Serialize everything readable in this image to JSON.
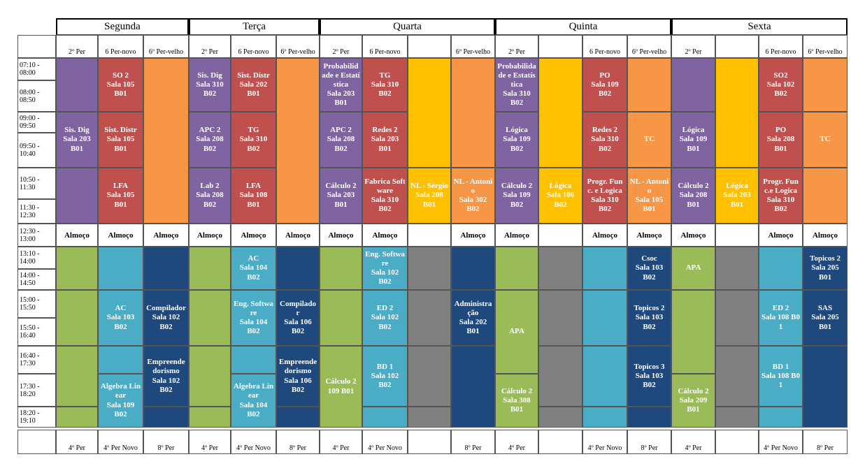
{
  "schedule": {
    "days": [
      "Segunda",
      "Terça",
      "Quarta",
      "Quinta",
      "Sexta"
    ],
    "sub_headers": [
      "2º Per",
      "6 Per-novo",
      "6º Per-velho",
      "2º Per",
      "6 Per-novo",
      "6º Per-velho",
      "2º Per",
      "6 Per-novo",
      null,
      "6º Per-velho",
      "2º Per",
      null,
      "6 Per-novo",
      "6º Per-velho",
      "2º Per",
      null,
      "6 Per-novo",
      "6º Per-velho"
    ],
    "footer": [
      "4º Per",
      "4º Per Novo",
      "8º Per",
      "4º Per",
      "4º Per Novo",
      "8º Per",
      "4º Per",
      "4º Per Novo",
      null,
      "8º Per",
      "4º Per",
      null,
      "4º Per Novo",
      "8º Per",
      "4º Per",
      null,
      "4º Per Novo",
      "8º Per"
    ],
    "times": [
      "07:10 - 08:00",
      "08:00 - 08:50",
      "09:00 - 09:50",
      "09:50 - 10:40",
      "10:50 - 11:30",
      "11:30 - 12:30",
      "12:30 - 13:00",
      "13:10 - 14:00",
      "14:00 - 14:50",
      "15:00 - 15:50",
      "15:50 - 16:40",
      "16:40 - 17:30",
      "17:30 - 18:20",
      "18:20 - 19:10"
    ],
    "lunch": [
      "Almoço",
      "Almoço",
      "Almoço",
      "Almoço",
      "Almoço",
      "Almoço",
      "Almoço",
      "Almoço",
      null,
      "Almoço",
      "Almoço",
      null,
      "Almoço",
      "Almoço",
      "Almoço",
      null,
      "Almoço",
      "Almoço"
    ],
    "blocks": [
      {
        "lines": [
          "Sis. Dig",
          "Sala 203",
          "B01"
        ]
      },
      {
        "lines": [
          "SO 2",
          "Sala 105",
          "B01"
        ]
      },
      {
        "lines": [
          "Sist. Distr",
          "Sala 105",
          "B01"
        ]
      },
      {
        "lines": [
          "LFA",
          "Sala 105",
          "B01"
        ]
      },
      {
        "lines": [
          "Sis. Dig",
          "Sala 310",
          "B02"
        ]
      },
      {
        "lines": [
          "APC 2",
          "Sala 208",
          "B02"
        ]
      },
      {
        "lines": [
          "Lab 2",
          "Sala 208",
          "B02"
        ]
      },
      {
        "lines": [
          "Sist. Distr",
          "Sala 202",
          "B01"
        ]
      },
      {
        "lines": [
          "TG",
          "Sala 310",
          "B02"
        ]
      },
      {
        "lines": [
          "LFA",
          "Sala 108",
          "B01"
        ]
      },
      {
        "lines": [
          "Probabilidade e Estatística",
          "Sala 203",
          "B01"
        ]
      },
      {
        "lines": [
          "APC 2",
          "Sala 208",
          "B02"
        ]
      },
      {
        "lines": [
          "Cálculo 2",
          "Sala 203",
          "B01"
        ]
      },
      {
        "lines": [
          "TG",
          "Sala 310",
          "B02"
        ]
      },
      {
        "lines": [
          "Redes 2",
          "Sala 203",
          "B01"
        ]
      },
      {
        "lines": [
          "Fabrica Software",
          "Sala 310",
          "B02"
        ]
      },
      {
        "lines": [
          "NL - Sérgio",
          "Sala 208",
          "B01"
        ]
      },
      {
        "lines": [
          "NL - Antonio",
          "Sala 302",
          "B02"
        ]
      },
      {
        "lines": [
          "Probabilidade e Estatística",
          "Sala 310",
          "B02"
        ]
      },
      {
        "lines": [
          "Lógica",
          "Sala 109",
          "B02"
        ]
      },
      {
        "lines": [
          "Cálculo 2",
          "Sala 109",
          "B02"
        ]
      },
      {
        "lines": [
          "Lógica",
          "Sala 106",
          "B02"
        ]
      },
      {
        "lines": [
          "PO",
          "Sala 109",
          "B02"
        ]
      },
      {
        "lines": [
          "Redes 2",
          "Sala 310",
          "B02"
        ]
      },
      {
        "lines": [
          "Progr. Func. e Logica",
          "Sala 310",
          "B02"
        ]
      },
      {
        "lines": [
          "TC"
        ]
      },
      {
        "lines": [
          "NL - Antonio",
          "Sala 105",
          "B01"
        ]
      },
      {
        "lines": [
          "Lógica",
          "Sala 109",
          "B01"
        ]
      },
      {
        "lines": [
          "Cálculo 2",
          "Sala 208",
          "B01"
        ]
      },
      {
        "lines": [
          "Lógica",
          "Sala 203",
          "B01"
        ]
      },
      {
        "lines": [
          "SO2",
          "Sala 102",
          "B02"
        ]
      },
      {
        "lines": [
          "PO",
          "Sala 208",
          "B01"
        ]
      },
      {
        "lines": [
          "Progr. Func.e Logica",
          "Sala 310",
          "B02"
        ]
      },
      {
        "lines": [
          "TC"
        ]
      },
      {
        "lines": [
          "AC",
          "Sala 103",
          "B02"
        ]
      },
      {
        "lines": [
          "Algebra Linear",
          "Sala 109",
          "B02"
        ]
      },
      {
        "lines": [
          "Compilador",
          "Sala 102",
          "B02"
        ]
      },
      {
        "lines": [
          "Empreendedorismo",
          "Sala 102",
          "B02"
        ]
      },
      {
        "lines": [
          "AC",
          "Sala 104",
          "B02"
        ]
      },
      {
        "lines": [
          "Eng. Software",
          "Sala 104",
          "B02"
        ]
      },
      {
        "lines": [
          "Algebra Linear",
          "Sala 104",
          "B02"
        ]
      },
      {
        "lines": [
          "Compilador",
          "Sala 106",
          "B02"
        ]
      },
      {
        "lines": [
          "Empreendedorismo",
          "Sala 106",
          "B02"
        ]
      },
      {
        "lines": [
          "Cálculo 2",
          "109 B01"
        ]
      },
      {
        "lines": [
          "Eng. Software",
          "Sala 102",
          "B02"
        ]
      },
      {
        "lines": [
          "ED 2",
          "Sala 102",
          "B02"
        ]
      },
      {
        "lines": [
          "BD 1",
          "Sala 102",
          "B02"
        ]
      },
      {
        "lines": [
          "Administração",
          "Sala 202",
          "B01"
        ]
      },
      {
        "lines": [
          "APA"
        ]
      },
      {
        "lines": [
          "Cálculo 2",
          "Sala 308",
          "B01"
        ]
      },
      {
        "lines": [
          "Csoc",
          "Sala 103",
          "B02"
        ]
      },
      {
        "lines": [
          "Topicos 2",
          "Sala 103",
          "B02"
        ]
      },
      {
        "lines": [
          "Topicos 3",
          "Sala 103",
          "B02"
        ]
      },
      {
        "lines": [
          "APA"
        ]
      },
      {
        "lines": [
          "Cálculo 2",
          "Sala 209",
          "B01"
        ]
      },
      {
        "lines": [
          "ED 2",
          "Sala 108 B01"
        ]
      },
      {
        "lines": [
          "BD 1",
          "Sala 108 B01"
        ]
      },
      {
        "lines": [
          "Topicos 2",
          "Sala 205",
          "B01"
        ]
      },
      {
        "lines": [
          "SAS",
          "Sala 205",
          "B01"
        ]
      }
    ]
  }
}
